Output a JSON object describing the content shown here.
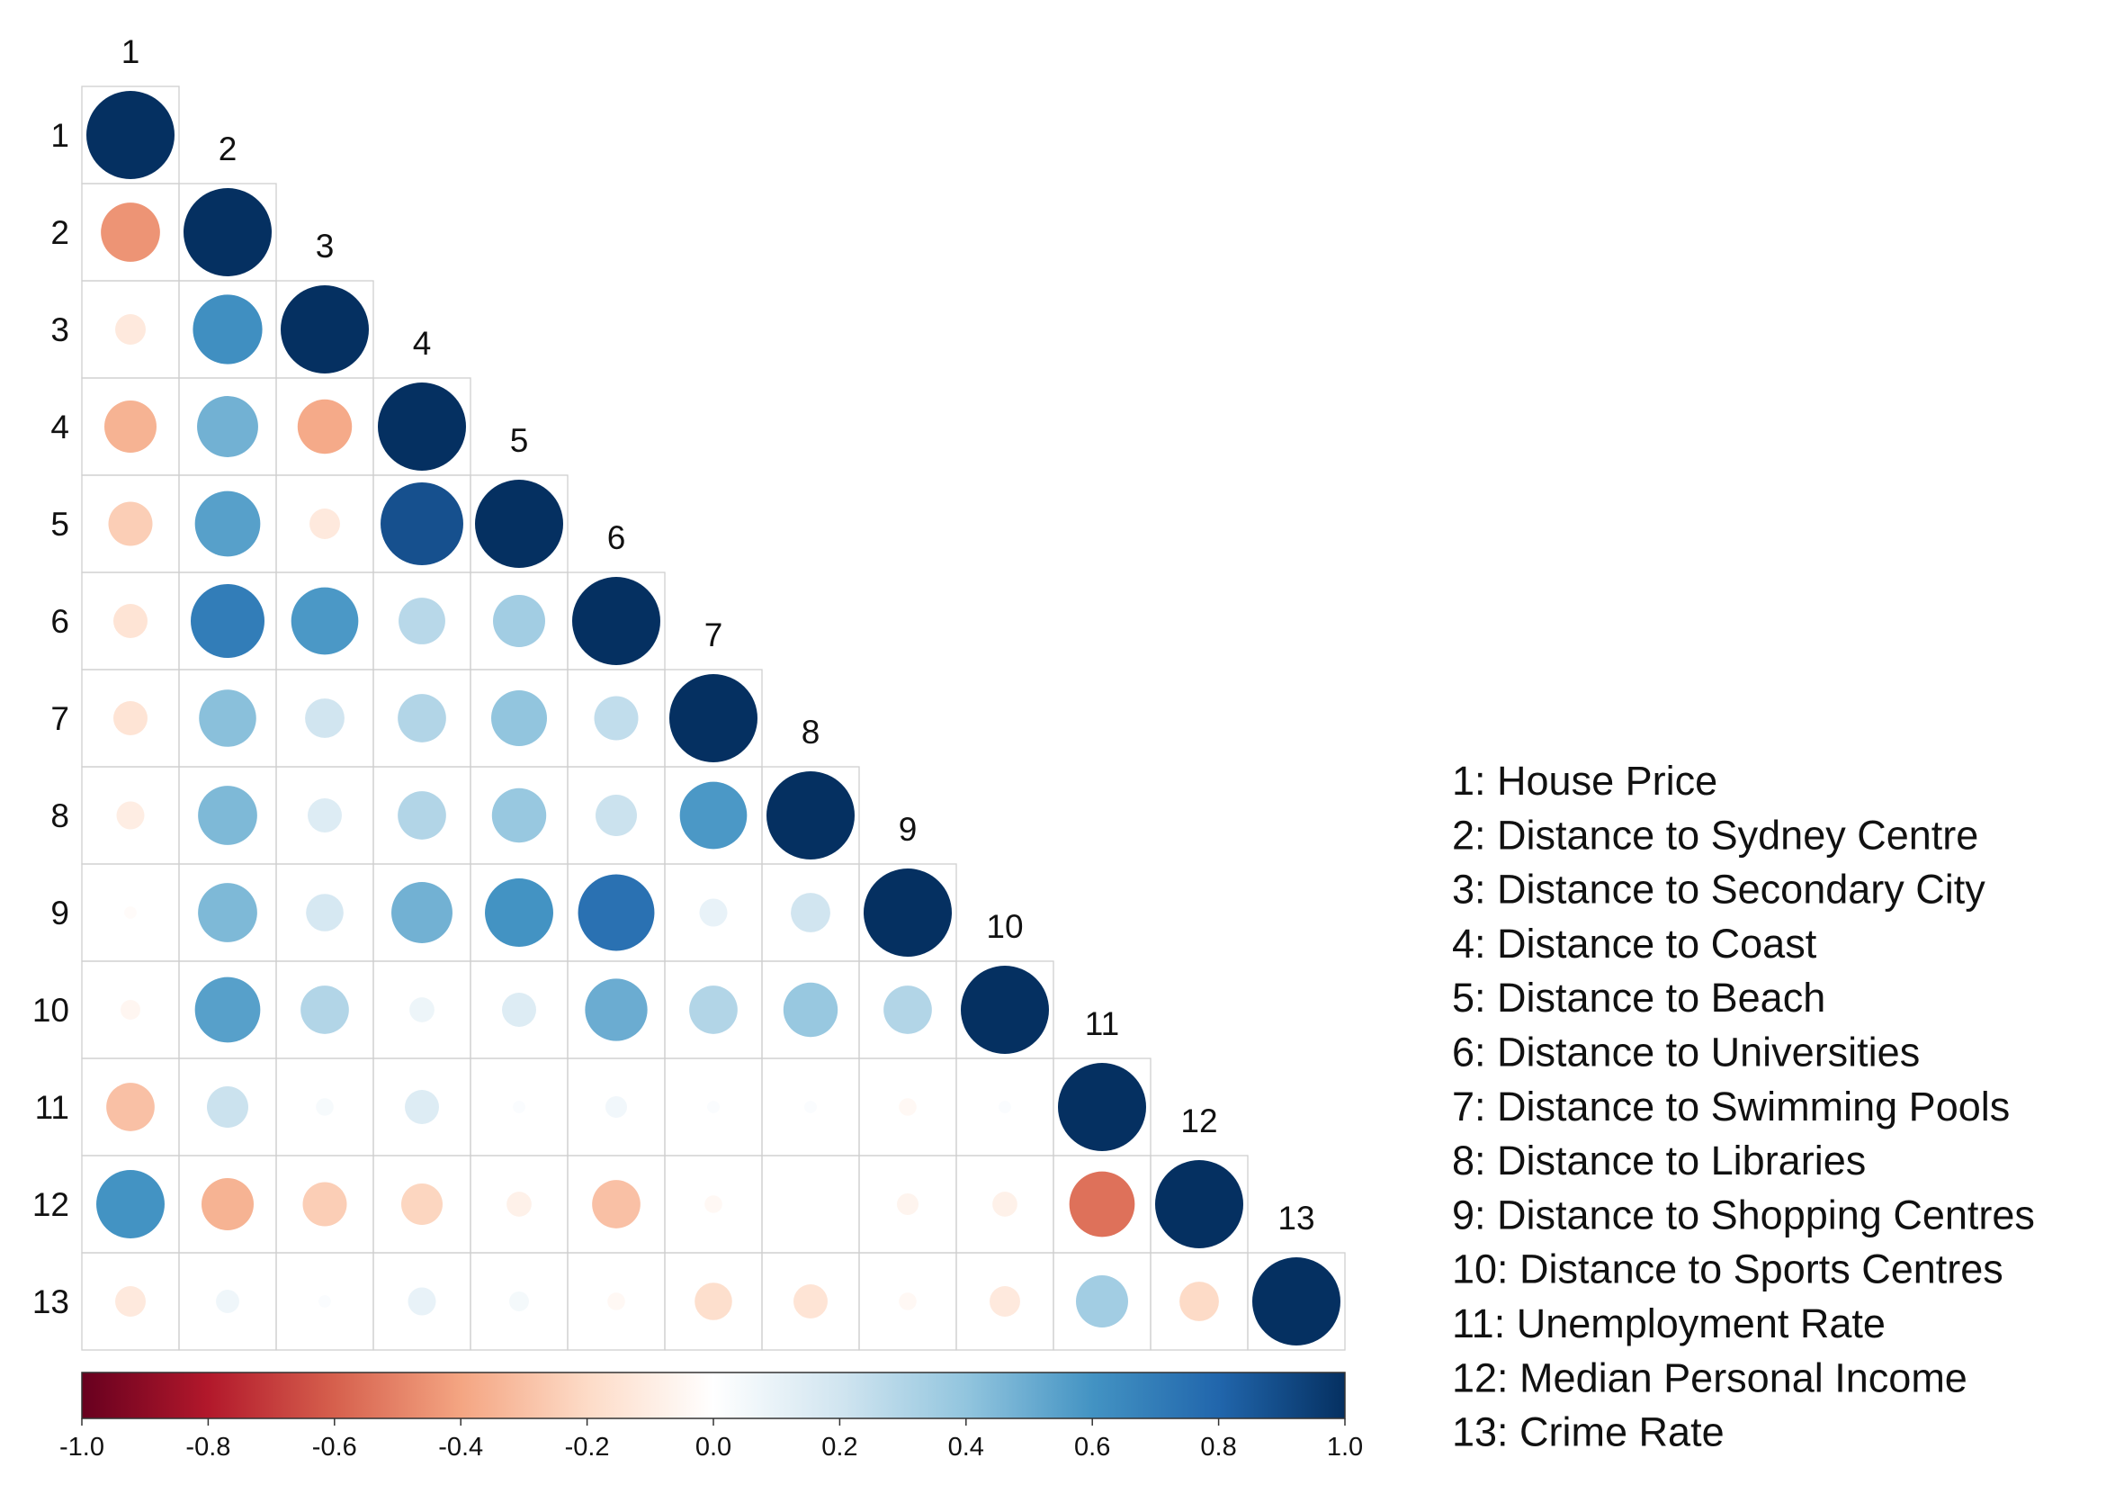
{
  "chart_data": {
    "type": "heatmap",
    "variables": [
      "1",
      "2",
      "3",
      "4",
      "5",
      "6",
      "7",
      "8",
      "9",
      "10",
      "11",
      "12",
      "13"
    ],
    "legend": [
      "1: House Price",
      "2: Distance to Sydney Centre",
      "3: Distance to Secondary City",
      "4: Distance to Coast",
      "5: Distance to Beach",
      "6: Distance to Universities",
      "7: Distance to Swimming Pools",
      "8: Distance to Libraries",
      "9: Distance to Shopping Centres",
      "10: Distance to Sports Centres",
      "11: Unemployment Rate",
      "12: Median Personal Income",
      "13: Crime Rate"
    ],
    "correlations": [
      [
        1.0
      ],
      [
        -0.45,
        1.0
      ],
      [
        -0.12,
        0.62,
        1.0
      ],
      [
        -0.35,
        0.48,
        -0.38,
        1.0
      ],
      [
        -0.25,
        0.55,
        -0.12,
        0.88,
        1.0
      ],
      [
        -0.15,
        0.7,
        0.58,
        0.28,
        0.35,
        1.0
      ],
      [
        -0.15,
        0.42,
        0.2,
        0.3,
        0.4,
        0.25,
        1.0
      ],
      [
        -0.1,
        0.45,
        0.15,
        0.3,
        0.38,
        0.22,
        0.58,
        1.0
      ],
      [
        -0.02,
        0.45,
        0.18,
        0.48,
        0.6,
        0.75,
        0.1,
        0.2,
        1.0
      ],
      [
        -0.05,
        0.55,
        0.3,
        0.08,
        0.15,
        0.5,
        0.3,
        0.38,
        0.3,
        1.0
      ],
      [
        -0.3,
        0.22,
        0.04,
        0.15,
        0.02,
        0.06,
        0.02,
        0.02,
        -0.04,
        0.02,
        1.0
      ],
      [
        0.6,
        -0.35,
        -0.25,
        -0.22,
        -0.08,
        -0.3,
        -0.04,
        0.0,
        -0.06,
        -0.08,
        -0.55,
        1.0
      ],
      [
        -0.12,
        0.07,
        0.02,
        0.1,
        0.05,
        -0.04,
        -0.18,
        -0.15,
        -0.04,
        -0.12,
        0.35,
        -0.2,
        1.0
      ]
    ],
    "colorbar": {
      "ticks": [
        "-1.0",
        "-0.8",
        "-0.6",
        "-0.4",
        "-0.2",
        "0.0",
        "0.2",
        "0.4",
        "0.6",
        "0.8",
        "1.0"
      ],
      "range": [
        -1,
        1
      ]
    },
    "colors": {
      "negative": "#67001f",
      "zero": "#ffffff",
      "positive": "#053061",
      "grid": "#d0d0d0"
    }
  }
}
